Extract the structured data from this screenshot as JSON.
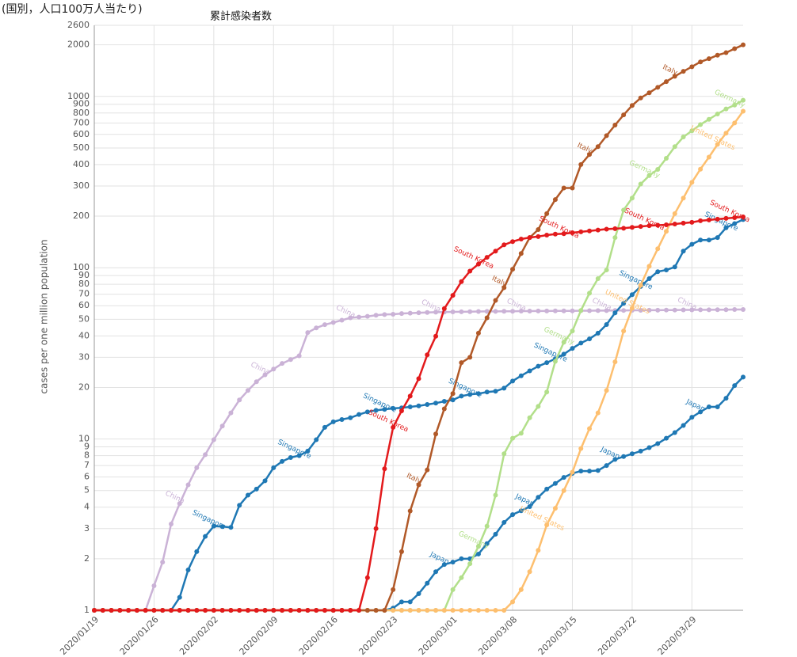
{
  "chart_data": {
    "type": "line",
    "subtitle": "(国別，人口100万人当たり)",
    "title": "累計感染者数",
    "y_label": "cases per one million population",
    "log_y": true,
    "grid": true,
    "x": [
      "2020/01/19",
      "2020/01/20",
      "2020/01/21",
      "2020/01/22",
      "2020/01/23",
      "2020/01/24",
      "2020/01/25",
      "2020/01/26",
      "2020/01/27",
      "2020/01/28",
      "2020/01/29",
      "2020/01/30",
      "2020/01/31",
      "2020/02/01",
      "2020/02/02",
      "2020/02/03",
      "2020/02/04",
      "2020/02/05",
      "2020/02/06",
      "2020/02/07",
      "2020/02/08",
      "2020/02/09",
      "2020/02/10",
      "2020/02/11",
      "2020/02/12",
      "2020/02/13",
      "2020/02/14",
      "2020/02/15",
      "2020/02/16",
      "2020/02/17",
      "2020/02/18",
      "2020/02/19",
      "2020/02/20",
      "2020/02/21",
      "2020/02/22",
      "2020/02/23",
      "2020/02/24",
      "2020/02/25",
      "2020/02/26",
      "2020/02/27",
      "2020/02/28",
      "2020/02/29",
      "2020/03/01",
      "2020/03/02",
      "2020/03/03",
      "2020/03/04",
      "2020/03/05",
      "2020/03/06",
      "2020/03/07",
      "2020/03/08",
      "2020/03/09",
      "2020/03/10",
      "2020/03/11",
      "2020/03/12",
      "2020/03/13",
      "2020/03/14",
      "2020/03/15",
      "2020/03/16",
      "2020/03/17",
      "2020/03/18",
      "2020/03/19",
      "2020/03/20",
      "2020/03/21",
      "2020/03/22",
      "2020/03/23",
      "2020/03/24",
      "2020/03/25",
      "2020/03/26",
      "2020/03/27",
      "2020/03/28",
      "2020/03/29",
      "2020/03/30",
      "2020/03/31",
      "2020/04/01",
      "2020/04/02",
      "2020/04/03",
      "2020/04/04"
    ],
    "xlim": [
      "2020/01/19",
      "2020/04/04"
    ],
    "xticks": [
      "2020/01/19",
      "2020/01/26",
      "2020/02/02",
      "2020/02/09",
      "2020/02/16",
      "2020/02/23",
      "2020/03/01",
      "2020/03/08",
      "2020/03/15",
      "2020/03/22",
      "2020/03/29"
    ],
    "ylim": [
      1,
      2600
    ],
    "yticks": [
      1,
      2,
      3,
      4,
      5,
      6,
      7,
      8,
      9,
      10,
      20,
      30,
      40,
      50,
      60,
      70,
      80,
      90,
      100,
      200,
      300,
      400,
      500,
      600,
      700,
      800,
      900,
      1000,
      2000,
      2600
    ],
    "series": [
      {
        "name": "China",
        "color": "#cab2d6",
        "values": [
          1,
          1,
          1,
          1,
          1,
          1,
          1,
          1.39,
          1.91,
          3.19,
          4.2,
          5.4,
          6.8,
          8.1,
          9.9,
          11.9,
          14.2,
          16.9,
          19.2,
          21.6,
          23.7,
          25.6,
          27.6,
          29.1,
          30.6,
          41.8,
          44.5,
          46.5,
          47.9,
          49.4,
          51,
          51.5,
          52,
          52.8,
          53.3,
          53.5,
          54,
          54.3,
          54.6,
          54.8,
          55,
          55.1,
          55.2,
          55.3,
          55.4,
          55.5,
          55.6,
          55.6,
          55.7,
          55.7,
          55.8,
          55.8,
          55.9,
          55.9,
          56,
          56,
          56,
          56.1,
          56.1,
          56.2,
          56.2,
          56.3,
          56.3,
          56.4,
          56.4,
          56.5,
          56.5,
          56.6,
          56.6,
          56.7,
          56.7,
          56.8,
          56.8,
          56.9,
          56.9,
          57,
          57
        ]
      },
      {
        "name": "Singapore",
        "color": "#1f78b4",
        "values": [
          1,
          1,
          1,
          1,
          1,
          1,
          1,
          1,
          1,
          1,
          1.19,
          1.72,
          2.2,
          2.7,
          3.1,
          3.08,
          3.05,
          4.1,
          4.7,
          5.1,
          5.7,
          6.8,
          7.4,
          7.8,
          8.0,
          8.5,
          9.9,
          11.7,
          12.6,
          13,
          13.3,
          13.9,
          14.4,
          14.7,
          14.9,
          15.1,
          15.2,
          15.4,
          15.6,
          15.9,
          16.2,
          16.6,
          16.9,
          17.8,
          18.2,
          18.4,
          18.8,
          19,
          19.8,
          21.8,
          23.4,
          25,
          26.6,
          27.9,
          29.4,
          31.3,
          33.8,
          36.3,
          38.4,
          41.5,
          46.6,
          54.5,
          62,
          69.6,
          77.7,
          86.3,
          94.8,
          97,
          101,
          125,
          137,
          145,
          145,
          150,
          171,
          181,
          191
        ]
      },
      {
        "name": "Japan",
        "color": "#1f78b4",
        "values": [
          1,
          1,
          1,
          1,
          1,
          1,
          1,
          1,
          1,
          1,
          1,
          1,
          1,
          1,
          1,
          1,
          1,
          1,
          1,
          1,
          1,
          1,
          1,
          1,
          1,
          1,
          1,
          1,
          1,
          1,
          1,
          1,
          1,
          1,
          1,
          1.03,
          1.12,
          1.12,
          1.25,
          1.44,
          1.68,
          1.85,
          1.91,
          2.0,
          2.0,
          2.13,
          2.45,
          2.78,
          3.26,
          3.62,
          3.81,
          4.03,
          4.57,
          5.1,
          5.5,
          5.97,
          6.3,
          6.5,
          6.5,
          6.55,
          7.0,
          7.6,
          7.9,
          8.2,
          8.5,
          8.9,
          9.4,
          10.1,
          10.9,
          12.0,
          13.4,
          14.4,
          15.4,
          15.4,
          17.3,
          20.5,
          23
        ]
      },
      {
        "name": "Germany",
        "color": "#b2df8a",
        "values": [
          1,
          1,
          1,
          1,
          1,
          1,
          1,
          1,
          1,
          1,
          1,
          1,
          1,
          1,
          1,
          1,
          1,
          1,
          1,
          1,
          1,
          1,
          1,
          1,
          1,
          1,
          1,
          1,
          1,
          1,
          1,
          1,
          1,
          1,
          1,
          1,
          1,
          1,
          1,
          1,
          1,
          1,
          1.32,
          1.55,
          1.87,
          2.36,
          3.1,
          4.7,
          8.2,
          10.1,
          10.8,
          13.3,
          15.5,
          18.8,
          28.4,
          36.7,
          42.7,
          56.3,
          71,
          86.3,
          97,
          150,
          217,
          255,
          308,
          345,
          375,
          435,
          509,
          580,
          630,
          685,
          735,
          790,
          845,
          890,
          950
        ]
      },
      {
        "name": "United States",
        "color": "#fdbf6f",
        "values": [
          1,
          1,
          1,
          1,
          1,
          1,
          1,
          1,
          1,
          1,
          1,
          1,
          1,
          1,
          1,
          1,
          1,
          1,
          1,
          1,
          1,
          1,
          1,
          1,
          1,
          1,
          1,
          1,
          1,
          1,
          1,
          1,
          1,
          1,
          1,
          1,
          1,
          1,
          1,
          1,
          1,
          1,
          1,
          1,
          1,
          1,
          1,
          1,
          1,
          1.12,
          1.32,
          1.68,
          2.24,
          3.15,
          3.94,
          5.0,
          6.4,
          8.8,
          11.5,
          14.2,
          19.2,
          28.2,
          42.7,
          58,
          79,
          102,
          129,
          163,
          207,
          255,
          315,
          376,
          442,
          525,
          610,
          700,
          820
        ]
      },
      {
        "name": "Italy",
        "color": "#b15928",
        "values": [
          1,
          1,
          1,
          1,
          1,
          1,
          1,
          1,
          1,
          1,
          1,
          1,
          1,
          1,
          1,
          1,
          1,
          1,
          1,
          1,
          1,
          1,
          1,
          1,
          1,
          1,
          1,
          1,
          1,
          1,
          1,
          1,
          1,
          1,
          1,
          1.32,
          2.2,
          3.8,
          5.4,
          6.6,
          10.7,
          15,
          18.4,
          27.9,
          30,
          41.5,
          51,
          64.4,
          76.5,
          98,
          121,
          150,
          167,
          207,
          250,
          292,
          292,
          400,
          458,
          509,
          590,
          680,
          780,
          885,
          980,
          1050,
          1130,
          1220,
          1310,
          1400,
          1490,
          1590,
          1660,
          1740,
          1800,
          1900,
          2000
        ]
      },
      {
        "name": "South Korea",
        "color": "#e31a1c",
        "values": [
          1,
          1,
          1,
          1,
          1,
          1,
          1,
          1,
          1,
          1,
          1,
          1,
          1,
          1,
          1,
          1,
          1,
          1,
          1,
          1,
          1,
          1,
          1,
          1,
          1,
          1,
          1,
          1,
          1,
          1,
          1,
          1,
          1.55,
          3.0,
          6.7,
          11.7,
          14.6,
          17.8,
          22.5,
          31,
          39.8,
          57.7,
          69,
          83,
          95.5,
          105,
          115,
          125,
          136,
          142,
          147,
          150,
          152,
          155,
          157,
          158,
          160,
          162,
          164,
          166,
          168,
          169,
          170,
          172,
          174,
          176,
          177,
          178,
          180,
          182,
          184,
          188,
          190,
          192,
          194,
          196,
          198
        ]
      }
    ]
  }
}
